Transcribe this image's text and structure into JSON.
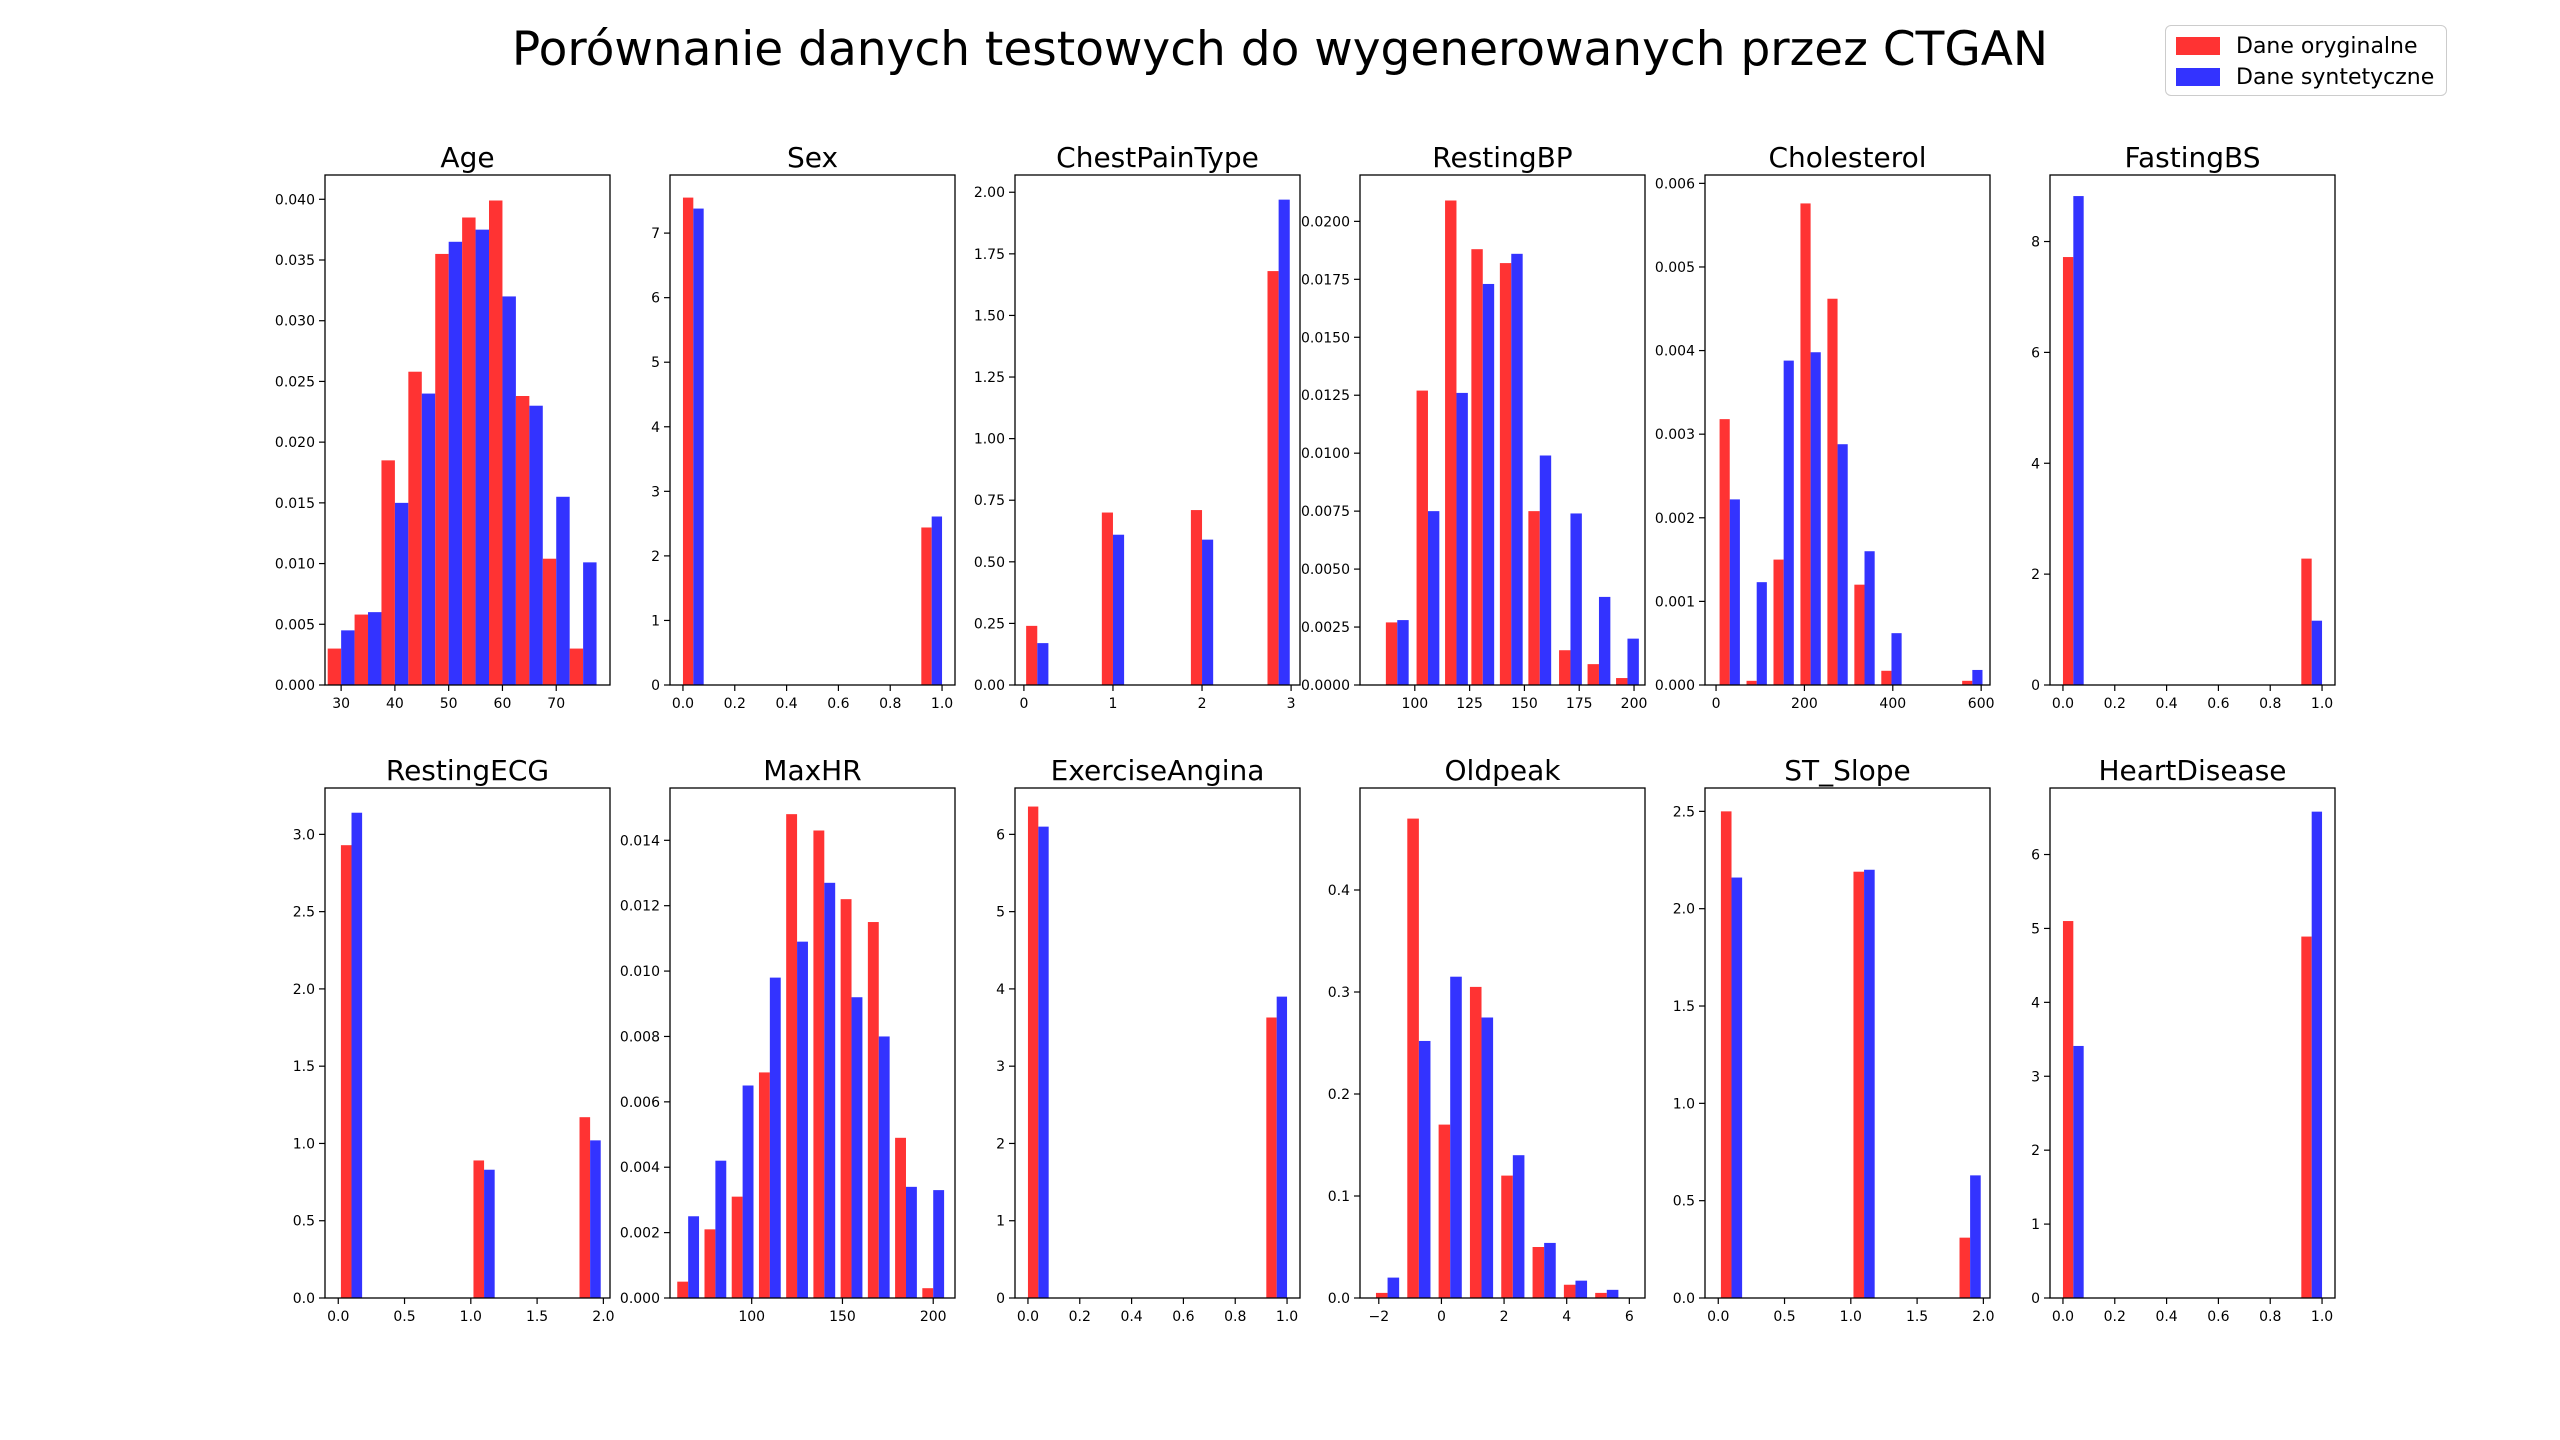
{
  "figure": {
    "title": "Porównanie danych testowych do wygenerowanych przez CTGAN",
    "legend_placement": "top-right"
  },
  "legend": [
    {
      "name": "Dane oryginalne",
      "color": "#ff3333"
    },
    {
      "name": "Dane syntetyczne",
      "color": "#3333ff"
    }
  ],
  "colors": {
    "original": "#ff3333",
    "synthetic": "#3333ff"
  },
  "chart_data": [
    {
      "type": "bar",
      "title": "Age",
      "x": [
        30,
        35,
        40,
        45,
        50,
        55,
        60,
        65,
        70,
        75
      ],
      "bar_width": 2.5,
      "xlim": [
        27,
        80
      ],
      "ylim": [
        0,
        0.042
      ],
      "xticks": [
        30,
        40,
        50,
        60,
        70
      ],
      "xtick_labels": [
        "30",
        "40",
        "50",
        "60",
        "70"
      ],
      "yticks": [
        0,
        0.005,
        0.01,
        0.015,
        0.02,
        0.025,
        0.03,
        0.035,
        0.04
      ],
      "ytick_labels": [
        "0.000",
        "0.005",
        "0.010",
        "0.015",
        "0.020",
        "0.025",
        "0.030",
        "0.035",
        "0.040"
      ],
      "series": [
        {
          "name": "Dane oryginalne",
          "values": [
            0.003,
            0.0058,
            0.0185,
            0.0258,
            0.0355,
            0.0385,
            0.0399,
            0.0238,
            0.0104,
            0.003
          ]
        },
        {
          "name": "Dane syntetyczne",
          "values": [
            0.0045,
            0.006,
            0.015,
            0.024,
            0.0365,
            0.0375,
            0.032,
            0.023,
            0.0155,
            0.0101
          ]
        }
      ]
    },
    {
      "type": "bar",
      "title": "Sex",
      "x": [
        0.04,
        0.96
      ],
      "bar_width": 0.04,
      "xlim": [
        -0.05,
        1.05
      ],
      "ylim": [
        0,
        7.9
      ],
      "xticks": [
        0,
        0.2,
        0.4,
        0.6,
        0.8,
        1.0
      ],
      "xtick_labels": [
        "0.0",
        "0.2",
        "0.4",
        "0.6",
        "0.8",
        "1.0"
      ],
      "yticks": [
        0,
        1,
        2,
        3,
        4,
        5,
        6,
        7
      ],
      "ytick_labels": [
        "0",
        "1",
        "2",
        "3",
        "4",
        "5",
        "6",
        "7"
      ],
      "series": [
        {
          "name": "Dane oryginalne",
          "values": [
            7.55,
            2.44
          ]
        },
        {
          "name": "Dane syntetyczne",
          "values": [
            7.38,
            2.61
          ]
        }
      ]
    },
    {
      "type": "bar",
      "title": "ChestPainType",
      "x": [
        0.15,
        1.0,
        2.0,
        2.86
      ],
      "bar_width": 0.125,
      "xlim": [
        -0.1,
        3.1
      ],
      "ylim": [
        0,
        2.07
      ],
      "xticks": [
        0,
        1,
        2,
        3
      ],
      "xtick_labels": [
        "0",
        "1",
        "2",
        "3"
      ],
      "yticks": [
        0,
        0.25,
        0.5,
        0.75,
        1.0,
        1.25,
        1.5,
        1.75,
        2.0
      ],
      "ytick_labels": [
        "0.00",
        "0.25",
        "0.50",
        "0.75",
        "1.00",
        "1.25",
        "1.50",
        "1.75",
        "2.00"
      ],
      "series": [
        {
          "name": "Dane oryginalne",
          "values": [
            0.24,
            0.7,
            0.71,
            1.68
          ]
        },
        {
          "name": "Dane syntetyczne",
          "values": [
            0.17,
            0.61,
            0.59,
            1.97
          ]
        }
      ]
    },
    {
      "type": "bar",
      "title": "RestingBP",
      "x": [
        92,
        106,
        119,
        131,
        144,
        157,
        171,
        184,
        197
      ],
      "bar_width": 5.2,
      "xlim": [
        75,
        205
      ],
      "ylim": [
        0,
        0.022
      ],
      "xticks": [
        100,
        125,
        150,
        175,
        200
      ],
      "xtick_labels": [
        "100",
        "125",
        "150",
        "175",
        "200"
      ],
      "yticks": [
        0,
        0.0025,
        0.005,
        0.0075,
        0.01,
        0.0125,
        0.015,
        0.0175,
        0.02
      ],
      "ytick_labels": [
        "0.0000",
        "0.0025",
        "0.0050",
        "0.0075",
        "0.0100",
        "0.0125",
        "0.0150",
        "0.0175",
        "0.0200"
      ],
      "series": [
        {
          "name": "Dane oryginalne",
          "values": [
            0.0027,
            0.0127,
            0.0209,
            0.0188,
            0.0182,
            0.0075,
            0.0015,
            0.0009,
            0.0003
          ]
        },
        {
          "name": "Dane syntetyczne",
          "values": [
            0.0028,
            0.0075,
            0.0126,
            0.0173,
            0.0186,
            0.0099,
            0.0074,
            0.0038,
            0.002
          ]
        }
      ]
    },
    {
      "type": "bar",
      "title": "Cholesterol",
      "x": [
        31,
        92,
        153,
        214,
        275,
        336,
        397,
        458,
        519,
        580
      ],
      "bar_width": 23,
      "xlim": [
        -25,
        620
      ],
      "ylim": [
        0,
        0.0061
      ],
      "xticks": [
        0,
        200,
        400,
        600
      ],
      "xtick_labels": [
        "0",
        "200",
        "400",
        "600"
      ],
      "yticks": [
        0,
        0.001,
        0.002,
        0.003,
        0.004,
        0.005,
        0.006
      ],
      "ytick_labels": [
        "0.000",
        "0.001",
        "0.002",
        "0.003",
        "0.004",
        "0.005",
        "0.006"
      ],
      "series": [
        {
          "name": "Dane oryginalne",
          "values": [
            0.00318,
            5e-05,
            0.0015,
            0.00576,
            0.00462,
            0.0012,
            0.00017,
            0,
            0,
            5e-05
          ]
        },
        {
          "name": "Dane syntetyczne",
          "values": [
            0.00222,
            0.00123,
            0.00388,
            0.00398,
            0.00288,
            0.0016,
            0.00062,
            0,
            0,
            0.00018
          ]
        }
      ]
    },
    {
      "type": "bar",
      "title": "FastingBS",
      "x": [
        0.04,
        0.96
      ],
      "bar_width": 0.04,
      "xlim": [
        -0.05,
        1.05
      ],
      "ylim": [
        0,
        9.2
      ],
      "xticks": [
        0,
        0.2,
        0.4,
        0.6,
        0.8,
        1.0
      ],
      "xtick_labels": [
        "0.0",
        "0.2",
        "0.4",
        "0.6",
        "0.8",
        "1.0"
      ],
      "yticks": [
        0,
        2,
        4,
        6,
        8
      ],
      "ytick_labels": [
        "0",
        "2",
        "4",
        "6",
        "8"
      ],
      "series": [
        {
          "name": "Dane oryginalne",
          "values": [
            7.72,
            2.28
          ]
        },
        {
          "name": "Dane syntetyczne",
          "values": [
            8.82,
            1.16
          ]
        }
      ]
    },
    {
      "type": "bar",
      "title": "RestingECG",
      "x": [
        0.1,
        1.1,
        1.9
      ],
      "bar_width": 0.08,
      "xlim": [
        -0.1,
        2.05
      ],
      "ylim": [
        0,
        3.3
      ],
      "xticks": [
        0,
        0.5,
        1.0,
        1.5,
        2.0
      ],
      "xtick_labels": [
        "0.0",
        "0.5",
        "1.0",
        "1.5",
        "2.0"
      ],
      "yticks": [
        0,
        0.5,
        1.0,
        1.5,
        2.0,
        2.5,
        3.0
      ],
      "ytick_labels": [
        "0.0",
        "0.5",
        "1.0",
        "1.5",
        "2.0",
        "2.5",
        "3.0"
      ],
      "series": [
        {
          "name": "Dane oryginalne",
          "values": [
            2.93,
            0.89,
            1.17
          ]
        },
        {
          "name": "Dane syntetyczne",
          "values": [
            3.14,
            0.83,
            1.02
          ]
        }
      ]
    },
    {
      "type": "bar",
      "title": "MaxHR",
      "x": [
        65,
        80,
        95,
        110,
        125,
        140,
        155,
        170,
        185,
        200
      ],
      "bar_width": 6,
      "xlim": [
        55,
        212
      ],
      "ylim": [
        0,
        0.0156
      ],
      "xticks": [
        100,
        150,
        200
      ],
      "xtick_labels": [
        "100",
        "150",
        "200"
      ],
      "yticks": [
        0,
        0.002,
        0.004,
        0.006,
        0.008,
        0.01,
        0.012,
        0.014
      ],
      "ytick_labels": [
        "0.000",
        "0.002",
        "0.004",
        "0.006",
        "0.008",
        "0.010",
        "0.012",
        "0.014"
      ],
      "series": [
        {
          "name": "Dane oryginalne",
          "values": [
            0.0005,
            0.0021,
            0.0031,
            0.0069,
            0.0148,
            0.0143,
            0.0122,
            0.0115,
            0.0049,
            0.0003
          ]
        },
        {
          "name": "Dane syntetyczne",
          "values": [
            0.0025,
            0.0042,
            0.0065,
            0.0098,
            0.0109,
            0.0127,
            0.0092,
            0.008,
            0.0034,
            0.0033
          ]
        }
      ]
    },
    {
      "type": "bar",
      "title": "ExerciseAngina",
      "x": [
        0.04,
        0.96
      ],
      "bar_width": 0.04,
      "xlim": [
        -0.05,
        1.05
      ],
      "ylim": [
        0,
        6.6
      ],
      "xticks": [
        0,
        0.2,
        0.4,
        0.6,
        0.8,
        1.0
      ],
      "xtick_labels": [
        "0.0",
        "0.2",
        "0.4",
        "0.6",
        "0.8",
        "1.0"
      ],
      "yticks": [
        0,
        1,
        2,
        3,
        4,
        5,
        6
      ],
      "ytick_labels": [
        "0",
        "1",
        "2",
        "3",
        "4",
        "5",
        "6"
      ],
      "series": [
        {
          "name": "Dane oryginalne",
          "values": [
            6.36,
            3.63
          ]
        },
        {
          "name": "Dane syntetyczne",
          "values": [
            6.1,
            3.9
          ]
        }
      ]
    },
    {
      "type": "bar",
      "title": "Oldpeak",
      "x": [
        -1.72,
        -0.72,
        0.28,
        1.28,
        2.28,
        3.28,
        4.28,
        5.28
      ],
      "bar_width": 0.37,
      "xlim": [
        -2.6,
        6.5
      ],
      "ylim": [
        0,
        0.5
      ],
      "xticks": [
        -2,
        0,
        2,
        4,
        6
      ],
      "xtick_labels": [
        "−2",
        "0",
        "2",
        "4",
        "6"
      ],
      "yticks": [
        0,
        0.1,
        0.2,
        0.3,
        0.4
      ],
      "ytick_labels": [
        "0.0",
        "0.1",
        "0.2",
        "0.3",
        "0.4"
      ],
      "series": [
        {
          "name": "Dane oryginalne",
          "values": [
            0.005,
            0.47,
            0.17,
            0.305,
            0.12,
            0.05,
            0.013,
            0.005
          ]
        },
        {
          "name": "Dane syntetyczne",
          "values": [
            0.02,
            0.252,
            0.315,
            0.275,
            0.14,
            0.054,
            0.017,
            0.008
          ]
        }
      ]
    },
    {
      "type": "bar",
      "title": "ST_Slope",
      "x": [
        0.1,
        1.1,
        1.9
      ],
      "bar_width": 0.08,
      "xlim": [
        -0.1,
        2.05
      ],
      "ylim": [
        0,
        2.62
      ],
      "xticks": [
        0,
        0.5,
        1.0,
        1.5,
        2.0
      ],
      "xtick_labels": [
        "0.0",
        "0.5",
        "1.0",
        "1.5",
        "2.0"
      ],
      "yticks": [
        0,
        0.5,
        1.0,
        1.5,
        2.0,
        2.5
      ],
      "ytick_labels": [
        "0.0",
        "0.5",
        "1.0",
        "1.5",
        "2.0",
        "2.5"
      ],
      "series": [
        {
          "name": "Dane oryginalne",
          "values": [
            2.5,
            2.19,
            0.31
          ]
        },
        {
          "name": "Dane syntetyczne",
          "values": [
            2.16,
            2.2,
            0.63
          ]
        }
      ]
    },
    {
      "type": "bar",
      "title": "HeartDisease",
      "x": [
        0.04,
        0.96
      ],
      "bar_width": 0.04,
      "xlim": [
        -0.05,
        1.05
      ],
      "ylim": [
        0,
        6.9
      ],
      "xticks": [
        0,
        0.2,
        0.4,
        0.6,
        0.8,
        1.0
      ],
      "xtick_labels": [
        "0.0",
        "0.2",
        "0.4",
        "0.6",
        "0.8",
        "1.0"
      ],
      "yticks": [
        0,
        1,
        2,
        3,
        4,
        5,
        6
      ],
      "ytick_labels": [
        "0",
        "1",
        "2",
        "3",
        "4",
        "5",
        "6"
      ],
      "series": [
        {
          "name": "Dane oryginalne",
          "values": [
            5.1,
            4.89
          ]
        },
        {
          "name": "Dane syntetyczne",
          "values": [
            3.41,
            6.58
          ]
        }
      ]
    }
  ]
}
